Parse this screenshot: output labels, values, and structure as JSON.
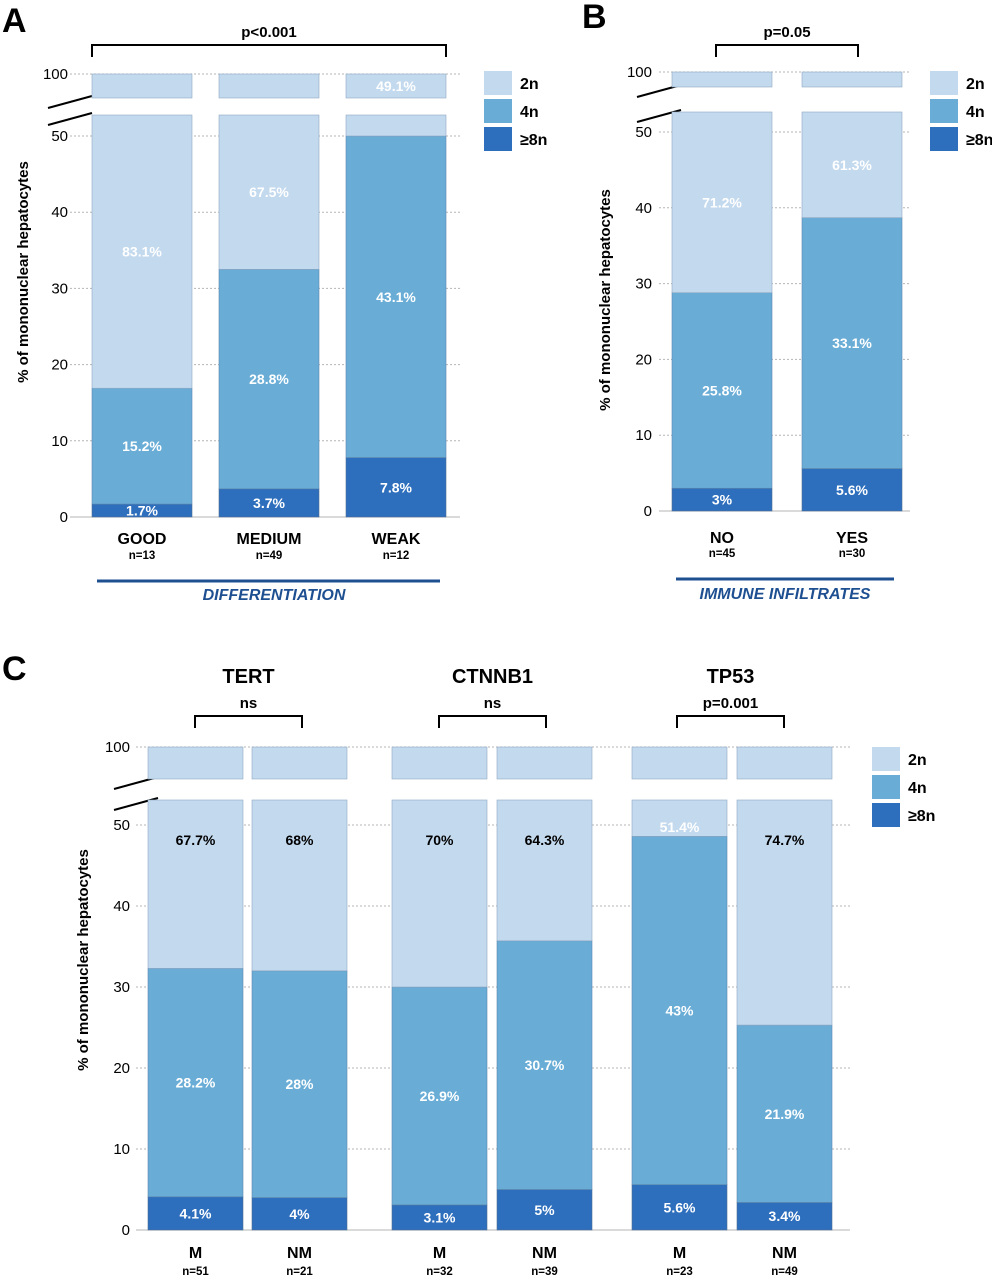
{
  "colors": {
    "2n": "#c3d9ee",
    "4n": "#69acd6",
    "8n": "#2e6fbd",
    "group_line": "#1d4f91",
    "grid": "#b5b5b5"
  },
  "legend": [
    "2n",
    "4n",
    "≥8n"
  ],
  "chart_data": [
    {
      "panel": "A",
      "type": "bar",
      "stacked": true,
      "ylabel": "% of mononuclear hepatocytes",
      "yticks": [
        "0",
        "10",
        "20",
        "30",
        "40",
        "50",
        "100"
      ],
      "axis_break": true,
      "significance": "p<0.001",
      "group_label": "DIFFERENTIATION",
      "categories": [
        "GOOD",
        "MEDIUM",
        "WEAK"
      ],
      "n_labels": [
        "n=13",
        "n=49",
        "n=12"
      ],
      "series": [
        {
          "name": "≥8n",
          "values": [
            1.7,
            3.7,
            7.8
          ],
          "labels": [
            "1.7%",
            "3.7%",
            "7.8%"
          ]
        },
        {
          "name": "4n",
          "values": [
            15.2,
            28.8,
            43.1
          ],
          "labels": [
            "15.2%",
            "28.8%",
            "43.1%"
          ]
        },
        {
          "name": "2n",
          "values": [
            83.1,
            67.5,
            49.1
          ],
          "labels": [
            "83.1%",
            "67.5%",
            "49.1%"
          ]
        }
      ]
    },
    {
      "panel": "B",
      "type": "bar",
      "stacked": true,
      "ylabel": "% of mononuclear hepatocytes",
      "yticks": [
        "0",
        "10",
        "20",
        "30",
        "40",
        "50",
        "100"
      ],
      "axis_break": true,
      "significance": "p=0.05",
      "group_label": "IMMUNE INFILTRATES",
      "categories": [
        "NO",
        "YES"
      ],
      "n_labels": [
        "n=45",
        "n=30"
      ],
      "series": [
        {
          "name": "≥8n",
          "values": [
            3,
            5.6
          ],
          "labels": [
            "3%",
            "5.6%"
          ]
        },
        {
          "name": "4n",
          "values": [
            25.8,
            33.1
          ],
          "labels": [
            "25.8%",
            "33.1%"
          ]
        },
        {
          "name": "2n",
          "values": [
            71.2,
            61.3
          ],
          "labels": [
            "71.2%",
            "61.3%"
          ]
        }
      ]
    },
    {
      "panel": "C",
      "type": "bar",
      "stacked": true,
      "ylabel": "% of mononuclear hepatocytes",
      "yticks": [
        "0",
        "10",
        "20",
        "30",
        "40",
        "50",
        "100"
      ],
      "axis_break": true,
      "genes": [
        {
          "name": "TERT",
          "significance": "ns"
        },
        {
          "name": "CTNNB1",
          "significance": "ns"
        },
        {
          "name": "TP53",
          "significance": "p=0.001"
        }
      ],
      "categories": [
        "M",
        "NM",
        "M",
        "NM",
        "M",
        "NM"
      ],
      "n_labels": [
        "n=51",
        "n=21",
        "n=32",
        "n=39",
        "n=23",
        "n=49"
      ],
      "series": [
        {
          "name": "≥8n",
          "values": [
            4.1,
            4,
            3.1,
            5,
            5.6,
            3.4
          ],
          "labels": [
            "4.1%",
            "4%",
            "3.1%",
            "5%",
            "5.6%",
            "3.4%"
          ]
        },
        {
          "name": "4n",
          "values": [
            28.2,
            28,
            26.9,
            30.7,
            43,
            21.9
          ],
          "labels": [
            "28.2%",
            "28%",
            "26.9%",
            "30.7%",
            "43%",
            "21.9%"
          ]
        },
        {
          "name": "2n",
          "values": [
            67.7,
            68,
            70,
            64.3,
            51.4,
            74.7
          ],
          "labels": [
            "67.7%",
            "68%",
            "70%",
            "64.3%",
            "51.4%",
            "74.7%"
          ]
        }
      ]
    }
  ]
}
